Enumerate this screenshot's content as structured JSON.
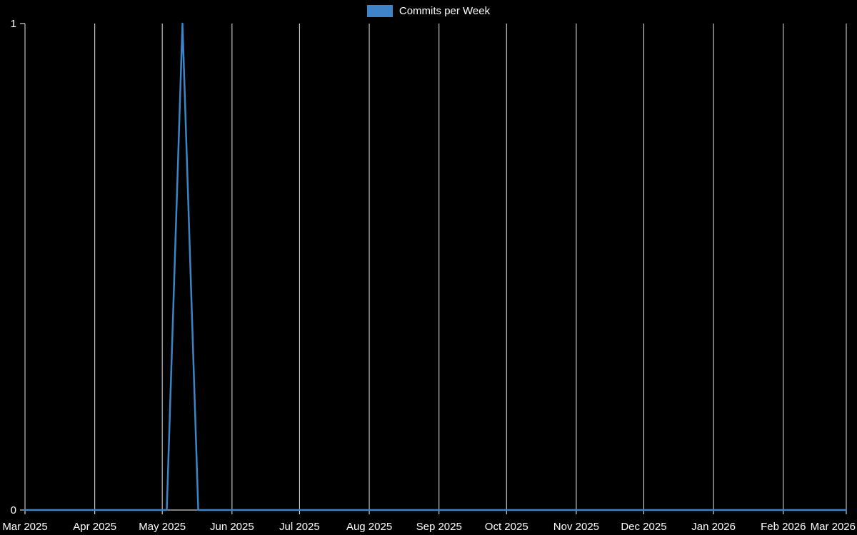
{
  "chart_data": {
    "type": "line",
    "title": "",
    "legend": [
      {
        "label": "Commits per Week",
        "color": "#3d85c8"
      }
    ],
    "xlabel": "",
    "ylabel": "",
    "xlim": [
      "2025-03-01",
      "2026-03-01"
    ],
    "ylim": [
      0,
      1
    ],
    "grid": "vertical-month-lines",
    "legend_position": "top-center",
    "colors": {
      "background": "#000000",
      "line": "#3d85c8",
      "grid": "#e8e8e8",
      "text": "#ffffff",
      "tick": "#ffffff"
    },
    "x_ticks": [
      {
        "date": "2025-03-01",
        "label": "Mar 2025"
      },
      {
        "date": "2025-04-01",
        "label": "Apr 2025"
      },
      {
        "date": "2025-05-01",
        "label": "May 2025"
      },
      {
        "date": "2025-06-01",
        "label": "Jun 2025"
      },
      {
        "date": "2025-07-01",
        "label": "Jul 2025"
      },
      {
        "date": "2025-08-01",
        "label": "Aug 2025"
      },
      {
        "date": "2025-09-01",
        "label": "Sep 2025"
      },
      {
        "date": "2025-10-01",
        "label": "Oct 2025"
      },
      {
        "date": "2025-11-01",
        "label": "Nov 2025"
      },
      {
        "date": "2025-12-01",
        "label": "Dec 2025"
      },
      {
        "date": "2026-01-01",
        "label": "Jan 2026"
      },
      {
        "date": "2026-02-01",
        "label": "Feb 2026"
      },
      {
        "date": "2026-03-01",
        "label": "Mar 2026"
      }
    ],
    "y_ticks": [
      {
        "value": 0,
        "label": "0"
      },
      {
        "value": 1,
        "label": "1"
      }
    ],
    "series": [
      {
        "name": "Commits per Week",
        "color": "#3d85c8",
        "dates": [
          "2025-03-01",
          "2025-03-08",
          "2025-03-15",
          "2025-03-22",
          "2025-03-29",
          "2025-04-05",
          "2025-04-12",
          "2025-04-19",
          "2025-04-26",
          "2025-05-03",
          "2025-05-10",
          "2025-05-17",
          "2025-05-24",
          "2025-05-31",
          "2025-06-07",
          "2025-06-14",
          "2025-06-21",
          "2025-06-28",
          "2025-07-05",
          "2025-07-12",
          "2025-07-19",
          "2025-07-26",
          "2025-08-02",
          "2025-08-09",
          "2025-08-16",
          "2025-08-23",
          "2025-08-30",
          "2025-09-06",
          "2025-09-13",
          "2025-09-20",
          "2025-09-27",
          "2025-10-04",
          "2025-10-11",
          "2025-10-18",
          "2025-10-25",
          "2025-11-01",
          "2025-11-08",
          "2025-11-15",
          "2025-11-22",
          "2025-11-29",
          "2025-12-06",
          "2025-12-13",
          "2025-12-20",
          "2025-12-27",
          "2026-01-03",
          "2026-01-10",
          "2026-01-17",
          "2026-01-24",
          "2026-01-31",
          "2026-02-07",
          "2026-02-14",
          "2026-02-21",
          "2026-02-28",
          "2026-03-01"
        ],
        "values": [
          0,
          0,
          0,
          0,
          0,
          0,
          0,
          0,
          0,
          0,
          1,
          0,
          0,
          0,
          0,
          0,
          0,
          0,
          0,
          0,
          0,
          0,
          0,
          0,
          0,
          0,
          0,
          0,
          0,
          0,
          0,
          0,
          0,
          0,
          0,
          0,
          0,
          0,
          0,
          0,
          0,
          0,
          0,
          0,
          0,
          0,
          0,
          0,
          0,
          0,
          0,
          0,
          0,
          0
        ]
      }
    ]
  }
}
